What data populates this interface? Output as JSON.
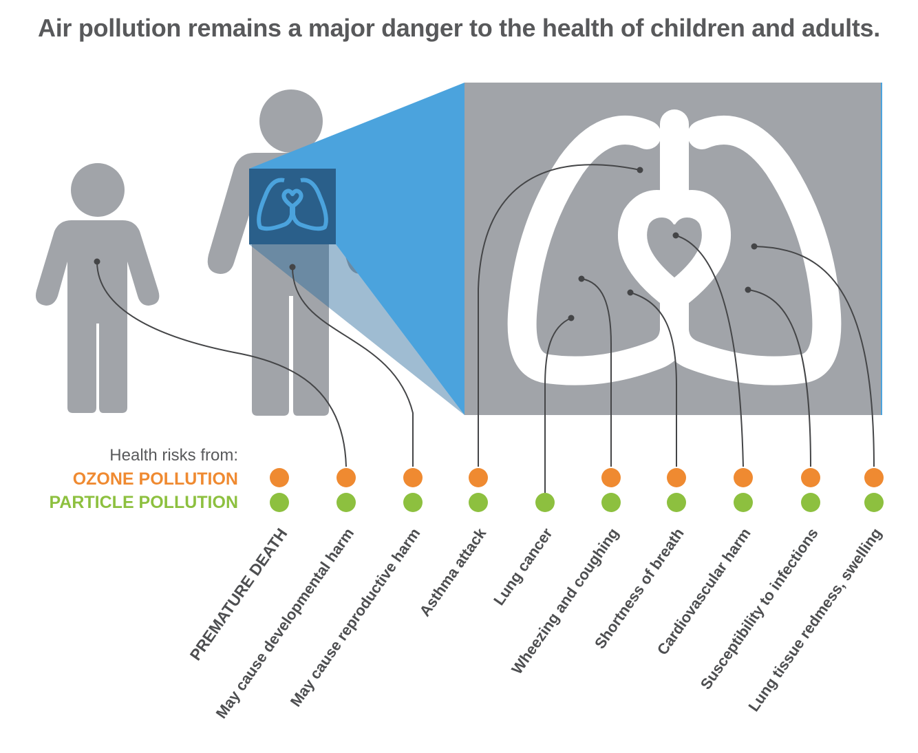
{
  "title": "Air pollution remains a major danger to the health of children and adults.",
  "legend": {
    "heading": "Health risks from:",
    "ozone_label": "OZONE POLLUTION",
    "particle_label": "PARTICLE POLLUTION"
  },
  "colors": {
    "ozone": "#ef8a31",
    "particle": "#8dc03f",
    "figure_gray": "#a1a4a9",
    "zoom_blue": "#4ba3dd",
    "lungs_white": "#ffffff",
    "connector": "#444547"
  },
  "risks": [
    {
      "label": "PREMATURE DEATH",
      "ozone": true,
      "particle": true
    },
    {
      "label": "May cause developmental harm",
      "ozone": true,
      "particle": true
    },
    {
      "label": "May cause reproductive harm",
      "ozone": true,
      "particle": true
    },
    {
      "label": "Asthma attack",
      "ozone": true,
      "particle": true
    },
    {
      "label": "Lung cancer",
      "ozone": false,
      "particle": true
    },
    {
      "label": "Wheezing and coughing",
      "ozone": true,
      "particle": true
    },
    {
      "label": "Shortness of breath",
      "ozone": true,
      "particle": true
    },
    {
      "label": "Cardiovascular harm",
      "ozone": true,
      "particle": true
    },
    {
      "label": "Susceptibility to infections",
      "ozone": true,
      "particle": true
    },
    {
      "label": "Lung tissue redmess, swelling",
      "ozone": true,
      "particle": true
    }
  ]
}
